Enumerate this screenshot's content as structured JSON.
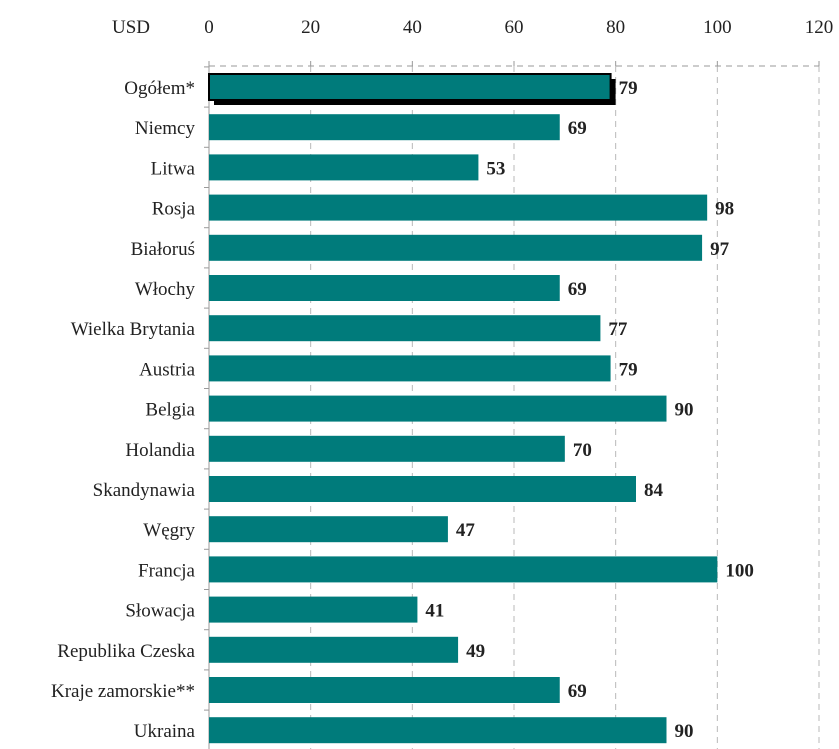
{
  "chart_data": {
    "type": "bar",
    "orientation": "horizontal",
    "unit_label": "USD",
    "categories": [
      "Ogółem*",
      "Niemcy",
      "Litwa",
      "Rosja",
      "Białoruś",
      "Włochy",
      "Wielka Brytania",
      "Austria",
      "Belgia",
      "Holandia",
      "Skandynawia",
      "Węgry",
      "Francja",
      "Słowacja",
      "Republika Czeska",
      "Kraje zamorskie**",
      "Ukraina"
    ],
    "values": [
      79,
      69,
      53,
      98,
      97,
      69,
      77,
      79,
      90,
      70,
      84,
      47,
      100,
      41,
      49,
      69,
      90
    ],
    "highlight_index": 0,
    "xlim": [
      0,
      120
    ],
    "x_ticks": [
      0,
      20,
      40,
      60,
      80,
      100,
      120
    ],
    "x_axis_position": "top",
    "grid": "vertical dashed",
    "colors": {
      "bar": "#007b7b",
      "highlight_border": "#000000",
      "grid": "#b8b8b8",
      "axis": "#999999"
    }
  }
}
